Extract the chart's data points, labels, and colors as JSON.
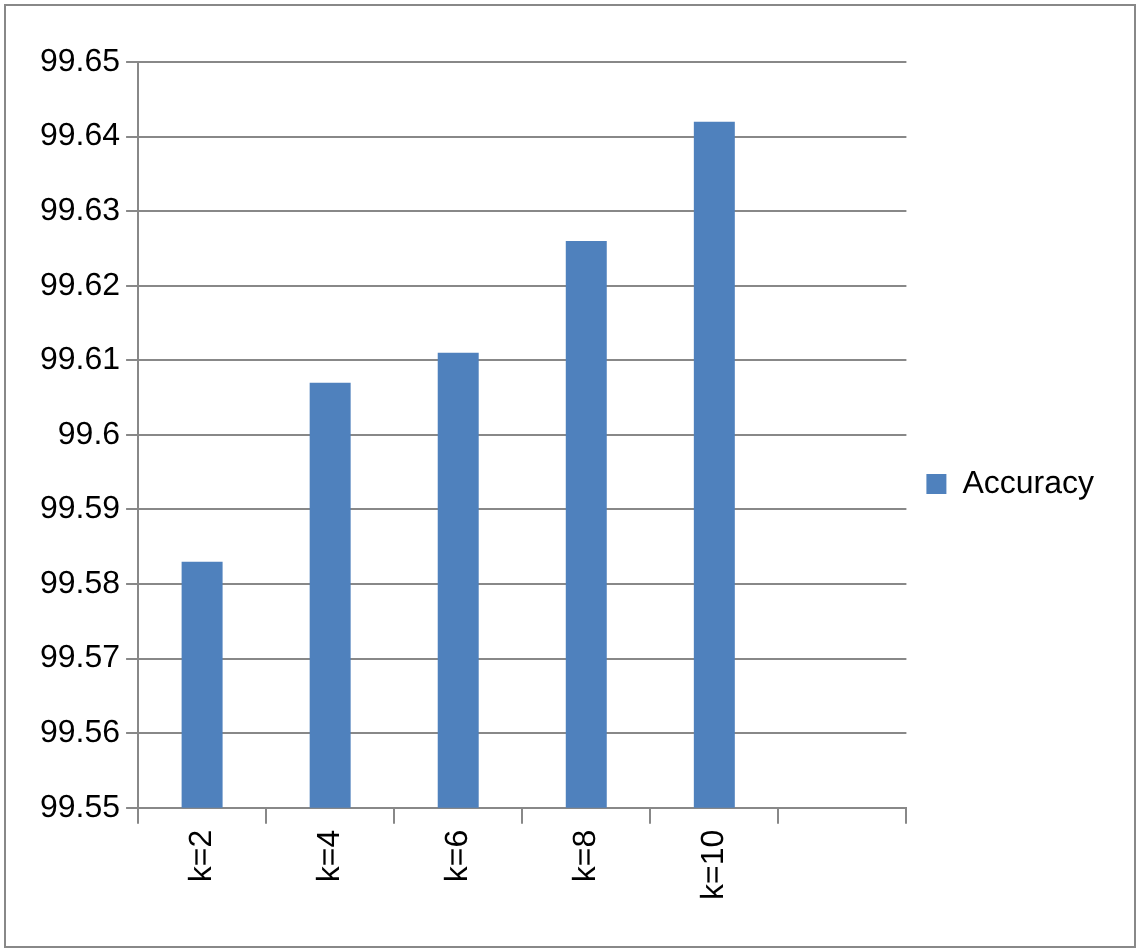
{
  "chart_data": {
    "type": "bar",
    "categories": [
      "k=2",
      "k=4",
      "k=6",
      "k=8",
      "k=10",
      null
    ],
    "series": [
      {
        "name": "Accuracy",
        "color": "#4f81bd",
        "values": [
          99.583,
          99.607,
          99.611,
          99.626,
          99.642,
          null
        ]
      }
    ],
    "ylim": [
      99.55,
      99.65
    ],
    "yticks": [
      99.55,
      99.56,
      99.57,
      99.58,
      99.59,
      99.6,
      99.61,
      99.62,
      99.63,
      99.64,
      99.65
    ],
    "grid": "y",
    "legend": "right"
  }
}
